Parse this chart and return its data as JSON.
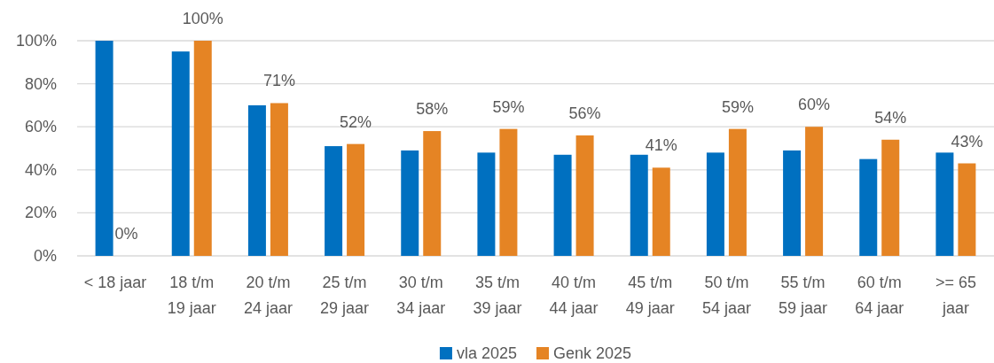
{
  "chart_data": {
    "type": "bar",
    "categories": [
      "< 18 jaar",
      "18 t/m 19 jaar",
      "20 t/m 24 jaar",
      "25 t/m 29 jaar",
      "30 t/m 34 jaar",
      "35 t/m 39 jaar",
      "40 t/m 44 jaar",
      "45 t/m 49 jaar",
      "50 t/m 54 jaar",
      "55 t/m 59 jaar",
      "60 t/m 64 jaar",
      ">= 65 jaar"
    ],
    "series": [
      {
        "name": "vla 2025",
        "color": "#0070c0",
        "values": [
          100,
          95,
          70,
          51,
          49,
          48,
          47,
          47,
          48,
          49,
          45,
          48
        ]
      },
      {
        "name": "Genk 2025",
        "color": "#e58424",
        "values": [
          0,
          100,
          71,
          52,
          58,
          59,
          56,
          41,
          59,
          60,
          54,
          43
        ],
        "value_labels": [
          "0%",
          "100%",
          "71%",
          "52%",
          "58%",
          "59%",
          "56%",
          "41%",
          "59%",
          "60%",
          "54%",
          "43%"
        ]
      }
    ],
    "ylim": [
      0,
      100
    ],
    "yticks": [
      {
        "value": 0,
        "label": "0%"
      },
      {
        "value": 20,
        "label": "20%"
      },
      {
        "value": 40,
        "label": "40%"
      },
      {
        "value": 60,
        "label": "60%"
      },
      {
        "value": 80,
        "label": "80%"
      },
      {
        "value": 100,
        "label": "100%"
      }
    ],
    "grid": "y",
    "legend": "bottom"
  }
}
